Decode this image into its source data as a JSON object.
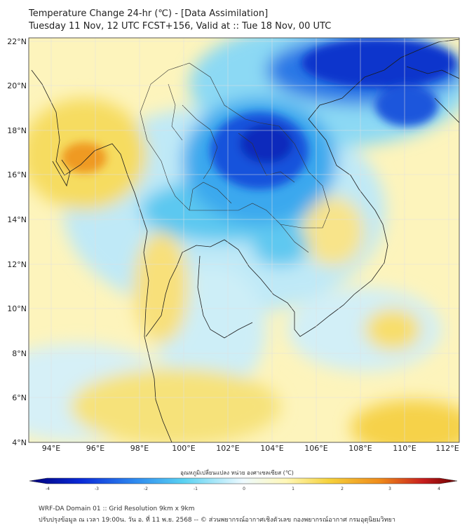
{
  "title": {
    "line1": "Temperature Change 24-hr (℃) - [Data Assimilation]",
    "line2": "Tuesday 11 Nov, 12 UTC FCST+156, Valid at :: Tue 18 Nov, 00 UTC"
  },
  "map": {
    "lon_range": [
      93,
      112.5
    ],
    "lat_range": [
      4,
      22.2
    ],
    "lon_ticks": [
      "94°E",
      "96°E",
      "98°E",
      "100°E",
      "102°E",
      "104°E",
      "106°E",
      "108°E",
      "110°E",
      "112°E"
    ],
    "lat_ticks": [
      "22°N",
      "20°N",
      "18°N",
      "16°N",
      "14°N",
      "12°N",
      "10°N",
      "8°N",
      "6°N",
      "4°N"
    ]
  },
  "colorbar": {
    "title": "อุณหภูมิเปลี่ยนแปลง หน่วย องศาเซลเซียส (℃)",
    "ticks": [
      "-4",
      "-3",
      "-2",
      "-1",
      "0",
      "1",
      "2",
      "3",
      "4"
    ],
    "range": [
      -4,
      4
    ],
    "colors": [
      "#00007a",
      "#0a2ad8",
      "#2f8cf0",
      "#5ad2f2",
      "#eefaff",
      "#fff8b8",
      "#f6d23c",
      "#ef8a1a",
      "#c81e1e",
      "#6a0000"
    ]
  },
  "footer": {
    "line1": "WRF-DA Domain 01 :: Grid Resolution 9km x 9km",
    "line2": "ปรับปรุงข้อมูล ณ เวลา 19:00น. วัน อ. ที่ 11 พ.ย. 2568 -- © ส่วนพยากรณ์อากาศเชิงตัวเลข กองพยากรณ์อากาศ กรมอุตุนิยมวิทยา"
  }
}
